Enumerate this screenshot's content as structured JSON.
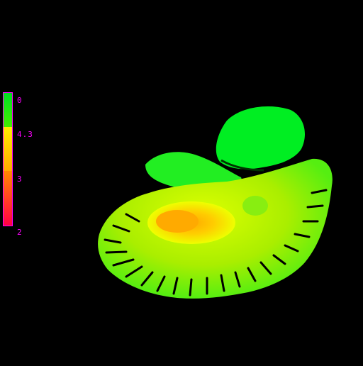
{
  "colorbar": {
    "border_color": "#ff00ff",
    "label_color": "#ff00ff",
    "segments": [
      {
        "from": "#00dd22",
        "to": "#44ee00"
      },
      {
        "from": "#ffee00",
        "to": "#ffaa00"
      },
      {
        "from": "#ff8800",
        "to": "#ff0044"
      }
    ],
    "ticks": [
      "0",
      "4.3",
      "3",
      "2"
    ]
  },
  "image": {
    "background": "#000000",
    "description_colors": {
      "cerebellum_outer": "#66ee11",
      "cerebellum_inner": "#ccff00",
      "core_hot": "#ffcc00",
      "brainstem": "#00ee22"
    }
  }
}
